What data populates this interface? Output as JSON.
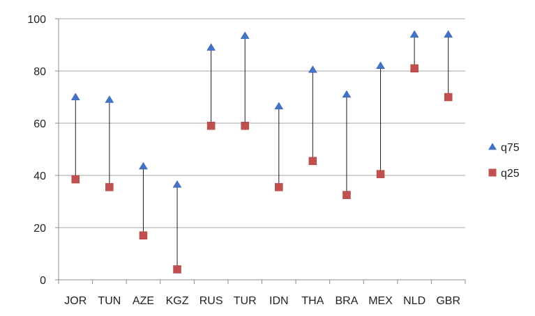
{
  "chart_data": {
    "type": "scatter",
    "categories": [
      "JOR",
      "TUN",
      "AZE",
      "KGZ",
      "RUS",
      "TUR",
      "IDN",
      "THA",
      "BRA",
      "MEX",
      "NLD",
      "GBR"
    ],
    "series": [
      {
        "name": "q75",
        "marker": "triangle",
        "color": "#4472C4",
        "values": [
          70,
          69,
          43.5,
          36.5,
          89,
          93.5,
          66.5,
          80.5,
          71,
          82,
          94,
          94
        ]
      },
      {
        "name": "q25",
        "marker": "square",
        "color": "#C0504D",
        "values": [
          38.5,
          35.5,
          17,
          4,
          59,
          59,
          35.5,
          45.5,
          32.5,
          40.5,
          81,
          70
        ]
      }
    ],
    "range_lines": true,
    "ylim": [
      0,
      100
    ],
    "yticks": [
      0,
      20,
      40,
      60,
      80,
      100
    ],
    "grid": true,
    "legend": "right",
    "title": "",
    "xlabel": "",
    "ylabel": ""
  }
}
